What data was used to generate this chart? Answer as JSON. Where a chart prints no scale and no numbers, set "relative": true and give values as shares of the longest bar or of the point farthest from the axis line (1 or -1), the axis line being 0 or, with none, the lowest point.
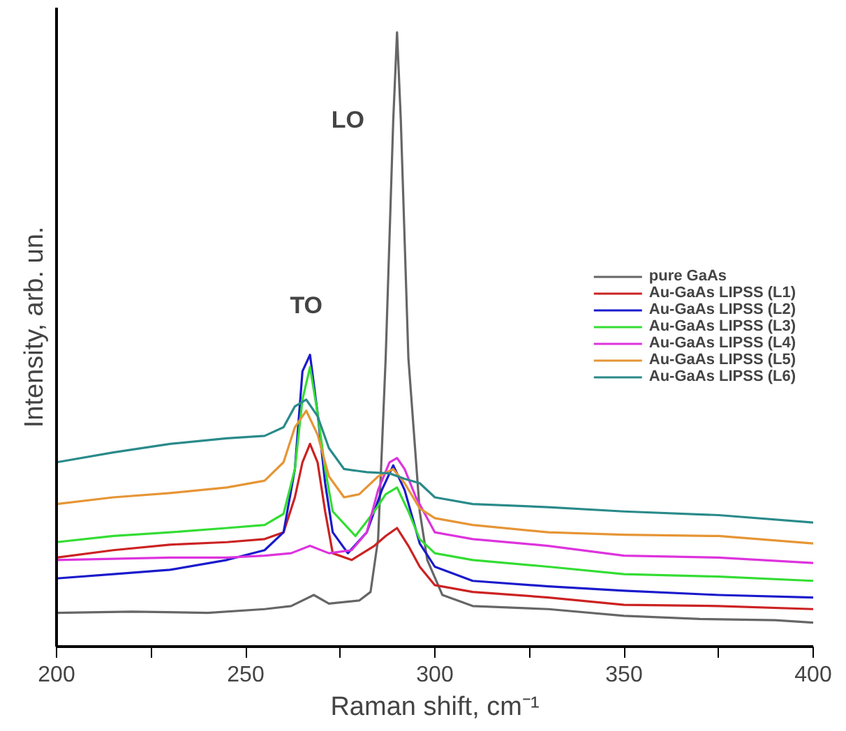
{
  "chart_data": {
    "type": "line",
    "relative": true,
    "xlabel": "Raman shift, cm⁻¹",
    "ylabel": "Intensity, arb. un.",
    "xlim": [
      200,
      400
    ],
    "xticks": [
      200,
      {
        "value": 225,
        "label": null
      },
      250,
      {
        "value": 275,
        "label": null
      },
      300,
      {
        "value": 325,
        "label": null
      },
      350,
      {
        "value": 375,
        "label": null
      },
      400
    ],
    "grid": false,
    "legend": "right",
    "annotations": [
      "TO",
      "LO"
    ],
    "series": [
      {
        "name": "pure GaAs",
        "color": "#666666",
        "x": [
          200,
          220,
          240,
          255,
          262,
          268,
          272,
          280,
          283,
          285,
          287,
          289,
          290,
          291,
          293,
          296,
          298,
          302,
          310,
          330,
          350,
          370,
          390,
          400
        ],
        "values": [
          0.055,
          0.057,
          0.055,
          0.061,
          0.066,
          0.084,
          0.07,
          0.075,
          0.089,
          0.175,
          0.47,
          0.857,
          1.0,
          0.857,
          0.47,
          0.22,
          0.141,
          0.084,
          0.066,
          0.061,
          0.05,
          0.045,
          0.043,
          0.039
        ]
      },
      {
        "name": "Au-GaAs LIPSS (L1)",
        "color": "#cc2222",
        "x": [
          200,
          215,
          230,
          245,
          255,
          260,
          263,
          265,
          267,
          269,
          271,
          273,
          278,
          284,
          287,
          290,
          293,
          296,
          300,
          310,
          330,
          350,
          375,
          400
        ],
        "values": [
          0.145,
          0.157,
          0.166,
          0.17,
          0.175,
          0.186,
          0.243,
          0.3,
          0.33,
          0.3,
          0.22,
          0.152,
          0.141,
          0.164,
          0.18,
          0.193,
          0.164,
          0.13,
          0.1,
          0.089,
          0.08,
          0.068,
          0.066,
          0.061
        ]
      },
      {
        "name": "Au-GaAs LIPSS (L2)",
        "color": "#1a1acc",
        "x": [
          200,
          215,
          230,
          245,
          255,
          260,
          263,
          265,
          267,
          269,
          271,
          273,
          277,
          282,
          286,
          289,
          292,
          296,
          300,
          310,
          330,
          350,
          375,
          400
        ],
        "values": [
          0.111,
          0.118,
          0.125,
          0.141,
          0.157,
          0.186,
          0.289,
          0.448,
          0.475,
          0.38,
          0.266,
          0.186,
          0.152,
          0.186,
          0.255,
          0.295,
          0.255,
          0.168,
          0.13,
          0.107,
          0.098,
          0.091,
          0.084,
          0.08
        ]
      },
      {
        "name": "Au-GaAs LIPSS (L3)",
        "color": "#33dd33",
        "x": [
          200,
          215,
          230,
          245,
          255,
          260,
          263,
          265,
          267,
          269,
          271,
          273,
          279,
          284,
          287,
          290,
          293,
          296,
          300,
          310,
          330,
          350,
          375,
          400
        ],
        "values": [
          0.17,
          0.18,
          0.186,
          0.193,
          0.198,
          0.216,
          0.289,
          0.402,
          0.455,
          0.38,
          0.289,
          0.22,
          0.18,
          0.22,
          0.248,
          0.259,
          0.22,
          0.175,
          0.152,
          0.141,
          0.13,
          0.118,
          0.114,
          0.107
        ]
      },
      {
        "name": "Au-GaAs LIPSS (L4)",
        "color": "#dd33dd",
        "x": [
          200,
          215,
          230,
          245,
          255,
          262,
          267,
          272,
          278,
          282,
          285,
          288,
          290,
          292,
          295,
          300,
          310,
          330,
          350,
          375,
          400
        ],
        "values": [
          0.141,
          0.143,
          0.145,
          0.145,
          0.148,
          0.152,
          0.164,
          0.152,
          0.157,
          0.186,
          0.255,
          0.3,
          0.307,
          0.289,
          0.243,
          0.186,
          0.175,
          0.164,
          0.148,
          0.145,
          0.136
        ]
      },
      {
        "name": "Au-GaAs LIPSS (L5)",
        "color": "#e69535",
        "x": [
          200,
          215,
          230,
          245,
          255,
          260,
          263,
          266,
          269,
          272,
          276,
          280,
          285,
          289,
          292,
          296,
          300,
          310,
          330,
          350,
          375,
          400
        ],
        "values": [
          0.232,
          0.243,
          0.25,
          0.259,
          0.27,
          0.3,
          0.357,
          0.384,
          0.345,
          0.277,
          0.243,
          0.248,
          0.277,
          0.289,
          0.266,
          0.225,
          0.209,
          0.198,
          0.186,
          0.182,
          0.18,
          0.168
        ]
      },
      {
        "name": "Au-GaAs LIPSS (L6)",
        "color": "#2a8a8a",
        "x": [
          200,
          215,
          230,
          245,
          255,
          260,
          263,
          266,
          269,
          272,
          276,
          282,
          288,
          292,
          296,
          300,
          310,
          330,
          350,
          375,
          400
        ],
        "values": [
          0.3,
          0.316,
          0.33,
          0.339,
          0.343,
          0.357,
          0.391,
          0.402,
          0.375,
          0.323,
          0.289,
          0.284,
          0.282,
          0.273,
          0.266,
          0.243,
          0.232,
          0.227,
          0.22,
          0.214,
          0.202
        ]
      }
    ]
  }
}
